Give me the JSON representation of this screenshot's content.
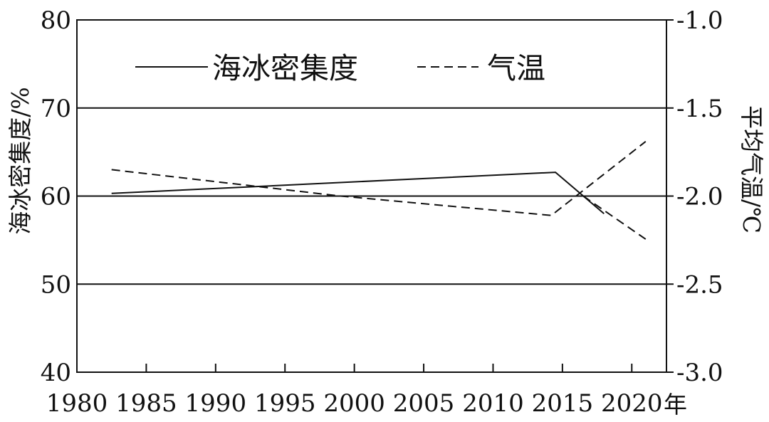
{
  "chart_data": {
    "type": "line",
    "unit_label": "年",
    "x_ticks": [
      "1980",
      "1985",
      "1990",
      "1995",
      "2000",
      "2005",
      "2010",
      "2015",
      "2020"
    ],
    "xlim": [
      1980,
      2022.5
    ],
    "left_axis": {
      "label": "海冰密集度/%",
      "ylim": [
        40,
        80
      ],
      "ticks": [
        "40",
        "50",
        "60",
        "70",
        "80"
      ]
    },
    "right_axis": {
      "label": "平均气温/℃",
      "ylim": [
        -3.0,
        -1.0
      ],
      "ticks": [
        "-3.0",
        "-2.5",
        "-2.0",
        "-1.5",
        "-1.0"
      ]
    },
    "gridlines_left_values": [
      50,
      60,
      70
    ],
    "series": [
      {
        "name": "海冰密集度",
        "axis": "left",
        "style": "solid",
        "color": "#111111",
        "points": [
          [
            1982.5,
            60.3
          ],
          [
            2014.5,
            62.7
          ],
          [
            2018,
            58.0
          ]
        ]
      },
      {
        "name": "气温",
        "axis": "right",
        "style": "dashed",
        "color": "#111111",
        "points": [
          [
            1982.5,
            -1.85
          ],
          [
            1999,
            -2.0
          ],
          [
            2014.2,
            -2.11
          ],
          [
            2021,
            -1.69
          ]
        ]
      },
      {
        "name": "",
        "axis": "left",
        "style": "dashed",
        "color": "#111111",
        "points": [
          [
            2016.5,
            60.0
          ],
          [
            2021,
            55.1
          ]
        ]
      }
    ],
    "legend": {
      "position": "top-left",
      "entries": [
        {
          "label": "海冰密集度",
          "style": "solid"
        },
        {
          "label": "气温",
          "style": "dashed"
        }
      ]
    }
  }
}
